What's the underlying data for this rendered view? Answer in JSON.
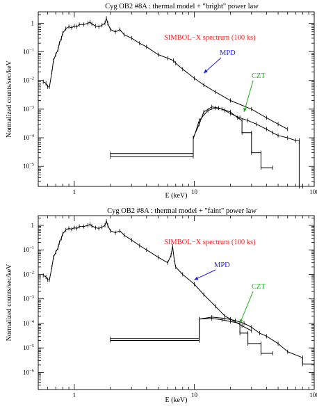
{
  "chart_data": [
    {
      "type": "line",
      "title": "Cyg OB2 #8A : thermal model + \"bright\" power law",
      "xlabel": "E (keV)",
      "ylabel": "Normalized counts/sec/keV",
      "xscale": "log",
      "yscale": "log",
      "xlim": [
        0.5,
        100
      ],
      "ylim": [
        2e-06,
        2.5
      ],
      "x_ticks": [
        {
          "v": 1,
          "label": "1"
        },
        {
          "v": 10,
          "label": "10"
        },
        {
          "v": 100,
          "label": "100"
        }
      ],
      "y_ticks": [
        {
          "v": 1,
          "base": "1",
          "exp": ""
        },
        {
          "v": 0.1,
          "base": "10",
          "exp": "−1"
        },
        {
          "v": 0.01,
          "base": "10",
          "exp": "−2"
        },
        {
          "v": 0.001,
          "base": "10",
          "exp": "−3"
        },
        {
          "v": 0.0001,
          "base": "10",
          "exp": "−4"
        },
        {
          "v": 1e-05,
          "base": "10",
          "exp": "−5"
        }
      ],
      "grid": false,
      "annotations": [
        {
          "text": "SIMBOL−X spectrum (100 ks)",
          "color": "#ff1a1a"
        },
        {
          "text": "MPD",
          "color": "#1a1aff",
          "arrow_to": [
            12,
            0.018
          ]
        },
        {
          "text": "CZT",
          "color": "#22b022",
          "arrow_to": [
            26,
            0.0008
          ]
        }
      ],
      "series": [
        {
          "color": "#000000",
          "x": [
            0.55,
            0.58,
            0.6,
            0.62,
            0.65,
            0.67,
            0.7,
            0.73,
            0.75,
            0.78,
            0.8,
            0.85,
            0.9,
            0.95,
            1.0,
            1.05,
            1.1,
            1.2,
            1.3,
            1.35,
            1.4,
            1.5,
            1.6,
            1.7,
            1.8,
            1.85,
            1.9,
            2.0,
            2.2,
            2.4,
            2.6,
            3.0,
            3.5,
            4.0,
            5.0,
            6.0,
            6.7,
            7.0,
            8.0,
            10,
            12,
            15,
            20,
            30,
            40,
            50,
            60
          ],
          "y": [
            0.009,
            0.008,
            0.006,
            0.006,
            0.02,
            0.05,
            0.08,
            0.12,
            0.2,
            0.3,
            0.45,
            0.65,
            0.75,
            0.7,
            0.8,
            0.75,
            0.9,
            0.9,
            1.0,
            1.1,
            0.95,
            0.8,
            0.75,
            0.85,
            1.0,
            1.5,
            1.0,
            0.6,
            0.5,
            0.6,
            0.4,
            0.3,
            0.2,
            0.15,
            0.08,
            0.06,
            0.05,
            0.04,
            0.025,
            0.012,
            0.007,
            0.004,
            0.002,
            0.001,
            0.0005,
            0.0003,
            0.0002
          ]
        },
        {
          "color": "#000000",
          "x": [
            2,
            9.8,
            9.8,
            11,
            12,
            14,
            16,
            18,
            20,
            24,
            28,
            33,
            40,
            45,
            50,
            60,
            70,
            75,
            75,
            80
          ],
          "y": [
            2.2e-05,
            2.2e-05,
            0.0001,
            0.0003,
            0.0008,
            0.0012,
            0.0011,
            0.0009,
            0.0007,
            0.0005,
            0.0004,
            0.0003,
            0.0002,
            0.00015,
            0.00012,
            0.0001,
            8e-05,
            8e-05,
            2e-06,
            2e-06
          ]
        },
        {
          "color": "#000000",
          "x": [
            2,
            9.8,
            9.8,
            11,
            13,
            15,
            17,
            20,
            23,
            25,
            25,
            30,
            30,
            36,
            36,
            45
          ],
          "y": [
            2.8e-05,
            2.8e-05,
            9e-05,
            0.0004,
            0.0009,
            0.0011,
            0.001,
            0.0008,
            0.0005,
            0.0004,
            0.00015,
            0.00015,
            3e-05,
            3e-05,
            9e-06,
            9e-06
          ]
        }
      ]
    },
    {
      "type": "line",
      "title": "Cyg OB2 #8A : thermal model + \"faint\" power law",
      "xlabel": "E (keV)",
      "ylabel": "Normalized counts/sec/keV",
      "xscale": "log",
      "yscale": "log",
      "xlim": [
        0.5,
        100
      ],
      "ylim": [
        2e-07,
        2.5
      ],
      "x_ticks": [
        {
          "v": 1,
          "label": "1"
        },
        {
          "v": 10,
          "label": "10"
        },
        {
          "v": 100,
          "label": "100"
        }
      ],
      "y_ticks": [
        {
          "v": 1,
          "base": "1",
          "exp": ""
        },
        {
          "v": 0.1,
          "base": "10",
          "exp": "−1"
        },
        {
          "v": 0.01,
          "base": "10",
          "exp": "−2"
        },
        {
          "v": 0.001,
          "base": "10",
          "exp": "−3"
        },
        {
          "v": 0.0001,
          "base": "10",
          "exp": "−4"
        },
        {
          "v": 1e-05,
          "base": "10",
          "exp": "−5"
        },
        {
          "v": 1e-06,
          "base": "10",
          "exp": "−6"
        }
      ],
      "grid": false,
      "annotations": [
        {
          "text": "SIMBOL−X spectrum (100 ks)",
          "color": "#ff1a1a"
        },
        {
          "text": "MPD",
          "color": "#1a1aff",
          "arrow_to": [
            10,
            0.006
          ]
        },
        {
          "text": "CZT",
          "color": "#22b022",
          "arrow_to": [
            24,
            0.0001
          ]
        }
      ],
      "series": [
        {
          "color": "#000000",
          "x": [
            0.55,
            0.58,
            0.6,
            0.62,
            0.65,
            0.67,
            0.7,
            0.73,
            0.75,
            0.78,
            0.8,
            0.85,
            0.9,
            0.95,
            1.0,
            1.05,
            1.1,
            1.2,
            1.3,
            1.35,
            1.4,
            1.5,
            1.6,
            1.7,
            1.8,
            1.85,
            1.9,
            2.0,
            2.2,
            2.4,
            2.6,
            3.0,
            3.5,
            4.0,
            5.0,
            6.0,
            6.4,
            6.6,
            6.8,
            7.0,
            8.0,
            10,
            12,
            15,
            18,
            20,
            25,
            30
          ],
          "y": [
            0.009,
            0.008,
            0.006,
            0.006,
            0.02,
            0.05,
            0.08,
            0.12,
            0.2,
            0.3,
            0.45,
            0.65,
            0.75,
            0.7,
            0.8,
            0.75,
            0.9,
            0.9,
            1.0,
            1.1,
            0.95,
            0.8,
            0.75,
            0.85,
            1.0,
            1.5,
            1.0,
            0.6,
            0.5,
            0.6,
            0.4,
            0.25,
            0.15,
            0.1,
            0.05,
            0.03,
            0.06,
            0.14,
            0.04,
            0.02,
            0.01,
            0.004,
            0.0015,
            0.0005,
            0.0002,
            0.00015,
            8e-05,
            5e-05
          ]
        },
        {
          "color": "#000000",
          "x": [
            2,
            11,
            11,
            14,
            18,
            22,
            26,
            30,
            35,
            40,
            50,
            60,
            80,
            80,
            100
          ],
          "y": [
            2.4e-05,
            2.4e-05,
            0.00015,
            0.00018,
            0.00016,
            0.00013,
            0.0001,
            7e-05,
            4e-05,
            3e-05,
            1.5e-05,
            7e-06,
            4e-06,
            2.2e-06,
            2.2e-06
          ]
        },
        {
          "color": "#000000",
          "x": [
            2,
            11,
            11,
            14,
            17,
            20,
            24,
            24,
            28,
            28,
            36,
            36,
            45
          ],
          "y": [
            2e-05,
            2e-05,
            0.00015,
            0.00016,
            0.00014,
            0.00012,
            0.0001,
            4e-05,
            4e-05,
            1.5e-05,
            1.5e-05,
            6e-06,
            6e-06
          ]
        }
      ]
    }
  ]
}
